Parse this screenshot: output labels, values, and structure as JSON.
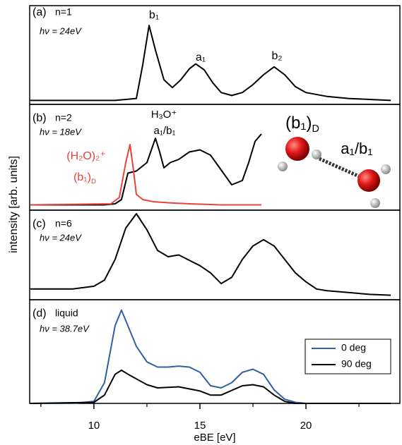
{
  "figure": {
    "ylabel": "intensity [arb. units]"
  },
  "chart_data": [
    {
      "type": "line",
      "label": "(a)",
      "subtitle": "n=1",
      "photon": "hν = 24eV",
      "xlim": [
        6.97,
        24.43
      ],
      "ylim": [
        0,
        1
      ],
      "annotations": [
        {
          "text": "b₁"
        },
        {
          "text": "a₁"
        },
        {
          "text": "b₂"
        }
      ],
      "series": [
        {
          "color": "#000000",
          "x": [
            7,
            11,
            12,
            12.3,
            12.6,
            12.9,
            13.3,
            13.7,
            14.1,
            14.5,
            14.8,
            15.2,
            15.6,
            16,
            16.5,
            17,
            17.5,
            18,
            18.5,
            19,
            19.5,
            20,
            21,
            22,
            23,
            24
          ],
          "values": [
            0.04,
            0.04,
            0.06,
            0.4,
            0.8,
            0.55,
            0.25,
            0.17,
            0.25,
            0.36,
            0.41,
            0.35,
            0.22,
            0.12,
            0.09,
            0.12,
            0.2,
            0.3,
            0.38,
            0.3,
            0.18,
            0.12,
            0.08,
            0.06,
            0.05,
            0.04
          ]
        }
      ]
    },
    {
      "type": "line",
      "label": "(b)",
      "subtitle": "n=2",
      "photon": "hν = 18eV",
      "xlim": [
        6.97,
        24.43
      ],
      "ylim": [
        0,
        1
      ],
      "annotations": [
        {
          "text": "H₃O⁺",
          "color": "#000000"
        },
        {
          "text": "a₁/b₁",
          "color": "#000000"
        },
        {
          "text": "(H₂O)₂⁺",
          "color": "#e8433a"
        },
        {
          "text": "(b₁)",
          "sub": "D",
          "color": "#e8433a"
        },
        {
          "text": "(b₁)",
          "sub": "D",
          "color": "#000000"
        },
        {
          "text": "a₁/b₁",
          "color": "#000000"
        }
      ],
      "series": [
        {
          "color": "#000000",
          "x": [
            7,
            10.5,
            11,
            11.3,
            11.6,
            12,
            12.5,
            12.9,
            13.1,
            13.3,
            13.6,
            14,
            14.5,
            15,
            15.5,
            16,
            16.5,
            17,
            17.3,
            17.6,
            17.9
          ],
          "values": [
            0.05,
            0.05,
            0.06,
            0.1,
            0.35,
            0.37,
            0.45,
            0.68,
            0.55,
            0.4,
            0.45,
            0.48,
            0.55,
            0.57,
            0.52,
            0.38,
            0.24,
            0.28,
            0.45,
            0.65,
            0.72
          ]
        },
        {
          "color": "#e8433a",
          "x": [
            7,
            10.8,
            11.2,
            11.5,
            11.7,
            11.85,
            12,
            12.3,
            12.8,
            13.5,
            14.5,
            16,
            17.9
          ],
          "values": [
            0.05,
            0.06,
            0.12,
            0.45,
            0.62,
            0.4,
            0.15,
            0.1,
            0.08,
            0.07,
            0.06,
            0.05,
            0.05
          ]
        }
      ]
    },
    {
      "type": "line",
      "label": "(c)",
      "subtitle": "n=6",
      "photon": "hν = 24eV",
      "xlim": [
        6.97,
        24.43
      ],
      "ylim": [
        0,
        1
      ],
      "series": [
        {
          "color": "#000000",
          "x": [
            7,
            9,
            10,
            10.5,
            11,
            11.5,
            12,
            12.5,
            13,
            13.5,
            14,
            14.5,
            15,
            15.5,
            16,
            16.5,
            17,
            17.5,
            18,
            18.5,
            19,
            19.5,
            20,
            20.5,
            21,
            22,
            23,
            24
          ],
          "values": [
            0.12,
            0.12,
            0.15,
            0.22,
            0.45,
            0.8,
            0.96,
            0.78,
            0.55,
            0.48,
            0.5,
            0.44,
            0.38,
            0.3,
            0.18,
            0.25,
            0.45,
            0.6,
            0.67,
            0.6,
            0.45,
            0.3,
            0.2,
            0.12,
            0.1,
            0.08,
            0.06,
            0.05
          ]
        }
      ]
    },
    {
      "type": "line",
      "label": "(d)",
      "subtitle": "liquid",
      "photon": "hν = 38.7eV",
      "xlim": [
        6.97,
        24.43
      ],
      "ylim": [
        0,
        1
      ],
      "xticks": [
        10,
        15,
        20
      ],
      "xminor": [
        7.5,
        12.5,
        17.5,
        22.5
      ],
      "xlabel": "eBE [eV]",
      "series": [
        {
          "name": "0 deg",
          "color": "#2f5fa8",
          "x": [
            7,
            9,
            10,
            10.5,
            11,
            11.3,
            11.7,
            12,
            12.5,
            13,
            13.5,
            14,
            14.5,
            15,
            15.5,
            16,
            16.5,
            17,
            17.5,
            18,
            18.5,
            19,
            19.5,
            20,
            24
          ],
          "values": [
            0,
            0,
            0.02,
            0.2,
            0.75,
            0.9,
            0.7,
            0.55,
            0.4,
            0.35,
            0.35,
            0.36,
            0.35,
            0.3,
            0.17,
            0.15,
            0.2,
            0.3,
            0.33,
            0.28,
            0.13,
            0.04,
            0.01,
            0,
            0
          ]
        },
        {
          "name": "90 deg",
          "color": "#000000",
          "x": [
            7,
            10,
            10.5,
            11,
            11.3,
            11.7,
            12.5,
            13,
            14,
            15,
            15.5,
            16,
            17,
            17.5,
            18,
            18.5,
            19,
            19.5,
            20,
            24
          ],
          "values": [
            0,
            0.01,
            0.08,
            0.28,
            0.32,
            0.27,
            0.18,
            0.15,
            0.16,
            0.12,
            0.08,
            0.08,
            0.17,
            0.18,
            0.16,
            0.08,
            0.02,
            0,
            0,
            0
          ]
        }
      ]
    }
  ]
}
